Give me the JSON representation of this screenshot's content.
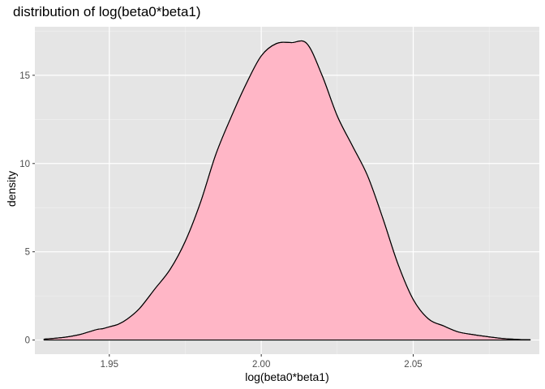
{
  "chart_data": {
    "type": "area",
    "title": "distribution of log(beta0*beta1)",
    "xlabel": "log(beta0*beta1)",
    "ylabel": "density",
    "xlim": [
      1.9255,
      2.0915
    ],
    "ylim": [
      -0.8,
      17.75
    ],
    "x_ticks": [
      1.95,
      2.0,
      2.05
    ],
    "x_tick_labels": [
      "1.95",
      "2.00",
      "2.05"
    ],
    "y_ticks": [
      0,
      5,
      10,
      15
    ],
    "y_tick_labels": [
      "0",
      "5",
      "10",
      "15"
    ],
    "grid": true,
    "legend": "none",
    "series": [
      {
        "x": [
          1.9285,
          1.935,
          1.94,
          1.943,
          1.946,
          1.948,
          1.95,
          1.953,
          1.956,
          1.96,
          1.965,
          1.97,
          1.975,
          1.98,
          1.985,
          1.99,
          1.995,
          2.0,
          2.005,
          2.01,
          2.015,
          2.02,
          2.025,
          2.03,
          2.035,
          2.04,
          2.045,
          2.05,
          2.055,
          2.06,
          2.065,
          2.07,
          2.075,
          2.08,
          2.085,
          2.0885
        ],
        "y": [
          0.05,
          0.15,
          0.3,
          0.45,
          0.6,
          0.65,
          0.75,
          0.9,
          1.2,
          1.8,
          2.9,
          4.0,
          5.6,
          7.8,
          10.5,
          12.6,
          14.5,
          16.1,
          16.8,
          16.85,
          16.8,
          15.0,
          12.7,
          11.0,
          9.3,
          6.9,
          4.3,
          2.3,
          1.2,
          0.8,
          0.45,
          0.3,
          0.18,
          0.08,
          0.03,
          0.02
        ]
      }
    ],
    "colors": {
      "panel": "#e5e5e5",
      "grid_major": "#ffffff",
      "grid_minor": "#f2f2f2",
      "fill": "#ffb6c6",
      "line": "#000000",
      "tick": "#333333",
      "tick_text": "#4d4d4d"
    }
  }
}
